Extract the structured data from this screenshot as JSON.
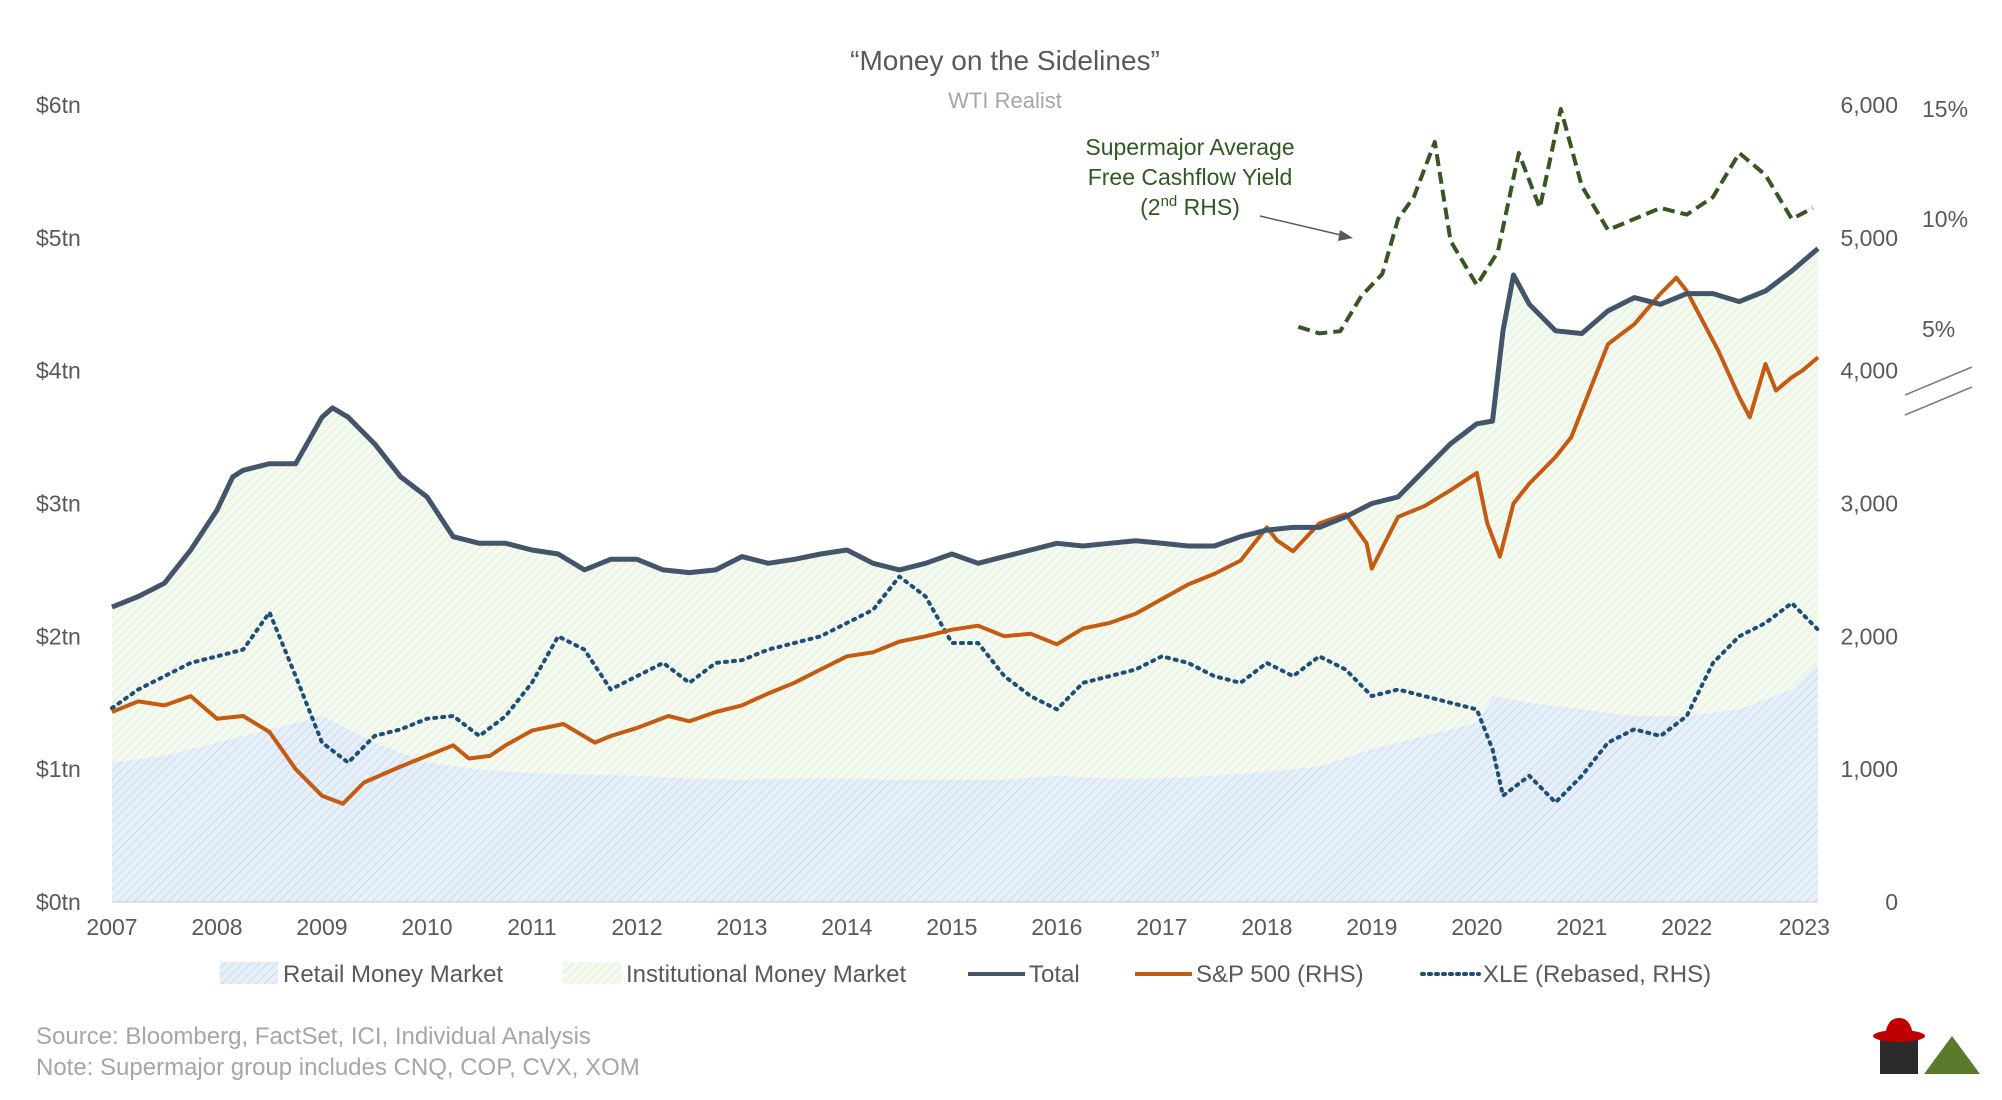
{
  "chart_data": {
    "type": "line",
    "title": "“Money on the Sidelines”",
    "subtitle": "WTI Realist",
    "x_ticks": [
      "2007",
      "2008",
      "2009",
      "2010",
      "2011",
      "2012",
      "2013",
      "2014",
      "2015",
      "2016",
      "2017",
      "2018",
      "2019",
      "2020",
      "2021",
      "2022",
      "2023"
    ],
    "left_axis": {
      "ticks": [
        "$0tn",
        "$1tn",
        "$2tn",
        "$3tn",
        "$4tn",
        "$5tn",
        "$6tn"
      ],
      "ylim": [
        0,
        6
      ],
      "unit": "tn"
    },
    "right_axis": {
      "ticks": [
        "0",
        "1,000",
        "2,000",
        "3,000",
        "4,000",
        "5,000",
        "6,000"
      ],
      "ylim": [
        0,
        6000
      ]
    },
    "right_axis_2": {
      "ticks": [
        "5%",
        "10%",
        "15%"
      ]
    },
    "series": [
      {
        "name": "Retail Money Market",
        "type": "area",
        "axis": "left",
        "color": "#c9dbf2",
        "x": [
          2007,
          2007.5,
          2008,
          2008.5,
          2009,
          2009.5,
          2010,
          2010.5,
          2011,
          2011.5,
          2012,
          2012.5,
          2013,
          2013.5,
          2014,
          2014.5,
          2015,
          2015.5,
          2016,
          2016.5,
          2017,
          2017.5,
          2018,
          2018.5,
          2019,
          2019.5,
          2020,
          2020.15,
          2020.5,
          2021,
          2021.5,
          2022,
          2022.5,
          2023,
          2023.25
        ],
        "values": [
          1.05,
          1.1,
          1.2,
          1.3,
          1.4,
          1.2,
          1.05,
          1.0,
          0.97,
          0.96,
          0.95,
          0.93,
          0.92,
          0.93,
          0.93,
          0.92,
          0.92,
          0.92,
          0.95,
          0.93,
          0.93,
          0.95,
          0.98,
          1.02,
          1.15,
          1.25,
          1.35,
          1.55,
          1.5,
          1.45,
          1.4,
          1.4,
          1.45,
          1.6,
          1.8
        ]
      },
      {
        "name": "Institutional Money Market",
        "type": "area",
        "axis": "left",
        "color": "#e2efd9",
        "stacked_total": "Total"
      },
      {
        "name": "Total",
        "type": "line",
        "axis": "left",
        "color": "#44546a",
        "x": [
          2007,
          2007.25,
          2007.5,
          2007.75,
          2008,
          2008.15,
          2008.25,
          2008.5,
          2008.75,
          2009,
          2009.1,
          2009.25,
          2009.5,
          2009.75,
          2010,
          2010.25,
          2010.5,
          2010.75,
          2011,
          2011.25,
          2011.5,
          2011.75,
          2012,
          2012.25,
          2012.5,
          2012.75,
          2013,
          2013.25,
          2013.5,
          2013.75,
          2014,
          2014.25,
          2014.5,
          2014.75,
          2015,
          2015.25,
          2015.5,
          2015.75,
          2016,
          2016.25,
          2016.5,
          2016.75,
          2017,
          2017.25,
          2017.5,
          2017.75,
          2018,
          2018.25,
          2018.5,
          2018.75,
          2019,
          2019.25,
          2019.5,
          2019.75,
          2020,
          2020.15,
          2020.25,
          2020.35,
          2020.5,
          2020.75,
          2021,
          2021.25,
          2021.5,
          2021.75,
          2022,
          2022.25,
          2022.5,
          2022.75,
          2023,
          2023.25
        ],
        "values": [
          2.22,
          2.3,
          2.4,
          2.65,
          2.95,
          3.2,
          3.25,
          3.3,
          3.3,
          3.65,
          3.72,
          3.65,
          3.45,
          3.2,
          3.05,
          2.75,
          2.7,
          2.7,
          2.65,
          2.62,
          2.5,
          2.58,
          2.58,
          2.5,
          2.48,
          2.5,
          2.6,
          2.55,
          2.58,
          2.62,
          2.65,
          2.55,
          2.5,
          2.55,
          2.62,
          2.55,
          2.6,
          2.65,
          2.7,
          2.68,
          2.7,
          2.72,
          2.7,
          2.68,
          2.68,
          2.75,
          2.8,
          2.82,
          2.82,
          2.9,
          3.0,
          3.05,
          3.25,
          3.45,
          3.6,
          3.62,
          4.3,
          4.72,
          4.5,
          4.3,
          4.28,
          4.45,
          4.55,
          4.5,
          4.58,
          4.58,
          4.52,
          4.6,
          4.75,
          4.92
        ]
      },
      {
        "name": "S&P 500 (RHS)",
        "type": "line",
        "axis": "right",
        "color": "#c55a11",
        "x": [
          2007,
          2007.25,
          2007.5,
          2007.75,
          2008,
          2008.25,
          2008.5,
          2008.75,
          2009,
          2009.2,
          2009.4,
          2009.75,
          2010,
          2010.25,
          2010.4,
          2010.6,
          2010.75,
          2011,
          2011.3,
          2011.6,
          2011.75,
          2012,
          2012.3,
          2012.5,
          2012.75,
          2013,
          2013.25,
          2013.5,
          2013.75,
          2014,
          2014.25,
          2014.5,
          2014.75,
          2015,
          2015.25,
          2015.5,
          2015.75,
          2016,
          2016.25,
          2016.5,
          2016.75,
          2017,
          2017.25,
          2017.5,
          2017.75,
          2018,
          2018.1,
          2018.25,
          2018.5,
          2018.75,
          2018.95,
          2019,
          2019.25,
          2019.5,
          2019.75,
          2020,
          2020.1,
          2020.22,
          2020.35,
          2020.5,
          2020.75,
          2020.9,
          2021,
          2021.25,
          2021.5,
          2021.75,
          2021.9,
          2022,
          2022.1,
          2022.3,
          2022.5,
          2022.6,
          2022.75,
          2022.85,
          2023,
          2023.1,
          2023.25
        ],
        "values": [
          1430,
          1510,
          1480,
          1550,
          1380,
          1400,
          1280,
          1000,
          800,
          740,
          900,
          1020,
          1100,
          1180,
          1080,
          1100,
          1180,
          1290,
          1340,
          1200,
          1250,
          1310,
          1400,
          1360,
          1430,
          1480,
          1570,
          1650,
          1750,
          1850,
          1880,
          1960,
          2000,
          2050,
          2080,
          2000,
          2020,
          1940,
          2060,
          2100,
          2170,
          2280,
          2390,
          2470,
          2570,
          2820,
          2720,
          2640,
          2850,
          2920,
          2700,
          2510,
          2900,
          2980,
          3100,
          3230,
          2850,
          2600,
          3000,
          3150,
          3350,
          3500,
          3700,
          4200,
          4350,
          4580,
          4700,
          4600,
          4450,
          4150,
          3800,
          3650,
          4050,
          3850,
          3950,
          4000,
          4100
        ]
      },
      {
        "name": "XLE (Rebased, RHS)",
        "type": "line",
        "axis": "right",
        "color": "#1f4e79",
        "x": [
          2007,
          2007.25,
          2007.5,
          2007.75,
          2008,
          2008.25,
          2008.5,
          2008.75,
          2009,
          2009.25,
          2009.5,
          2009.75,
          2010,
          2010.25,
          2010.5,
          2010.75,
          2011,
          2011.25,
          2011.5,
          2011.75,
          2012,
          2012.25,
          2012.5,
          2012.75,
          2013,
          2013.25,
          2013.5,
          2013.75,
          2014,
          2014.25,
          2014.5,
          2014.75,
          2015,
          2015.25,
          2015.5,
          2015.75,
          2016,
          2016.25,
          2016.5,
          2016.75,
          2017,
          2017.25,
          2017.5,
          2017.75,
          2018,
          2018.25,
          2018.5,
          2018.75,
          2019,
          2019.25,
          2019.5,
          2019.75,
          2020,
          2020.15,
          2020.25,
          2020.5,
          2020.75,
          2021,
          2021.25,
          2021.5,
          2021.75,
          2022,
          2022.25,
          2022.5,
          2022.75,
          2023,
          2023.25
        ],
        "values": [
          1460,
          1600,
          1700,
          1800,
          1850,
          1900,
          2180,
          1700,
          1200,
          1050,
          1250,
          1300,
          1380,
          1400,
          1250,
          1400,
          1650,
          2000,
          1900,
          1600,
          1700,
          1800,
          1650,
          1800,
          1820,
          1900,
          1950,
          2000,
          2100,
          2200,
          2450,
          2300,
          1950,
          1950,
          1700,
          1550,
          1450,
          1650,
          1700,
          1750,
          1850,
          1800,
          1700,
          1650,
          1800,
          1700,
          1850,
          1750,
          1550,
          1600,
          1550,
          1500,
          1450,
          1150,
          800,
          950,
          750,
          950,
          1200,
          1300,
          1250,
          1400,
          1800,
          2000,
          2100,
          2250,
          2050
        ]
      },
      {
        "name": "Supermajor Average Free Cashflow Yield (2nd RHS)",
        "type": "line",
        "axis": "right_2",
        "color": "#375623",
        "x": [
          2018.3,
          2018.5,
          2018.7,
          2018.9,
          2019.1,
          2019.25,
          2019.4,
          2019.6,
          2019.75,
          2020,
          2020.2,
          2020.4,
          2020.6,
          2020.8,
          2021,
          2021.25,
          2021.5,
          2021.75,
          2022,
          2022.25,
          2022.5,
          2022.75,
          2023,
          2023.2
        ],
        "values": [
          5.1,
          4.8,
          4.9,
          6.5,
          7.5,
          10,
          11,
          13.5,
          9,
          7,
          8.5,
          13,
          10.5,
          15,
          11.5,
          9.5,
          10,
          10.5,
          10.2,
          11,
          13,
          12,
          10,
          10.5
        ]
      }
    ],
    "annotation": {
      "lines": [
        "Supermajor Average",
        "Free Cashflow Yield"
      ],
      "sub_prefix": "(2",
      "sub_sup": "nd",
      "sub_suffix": " RHS)"
    },
    "notes": [
      "Source: Bloomberg, FactSet, ICI, Individual Analysis",
      "Note: Supermajor group includes CNQ, COP, CVX, XOM"
    ]
  }
}
